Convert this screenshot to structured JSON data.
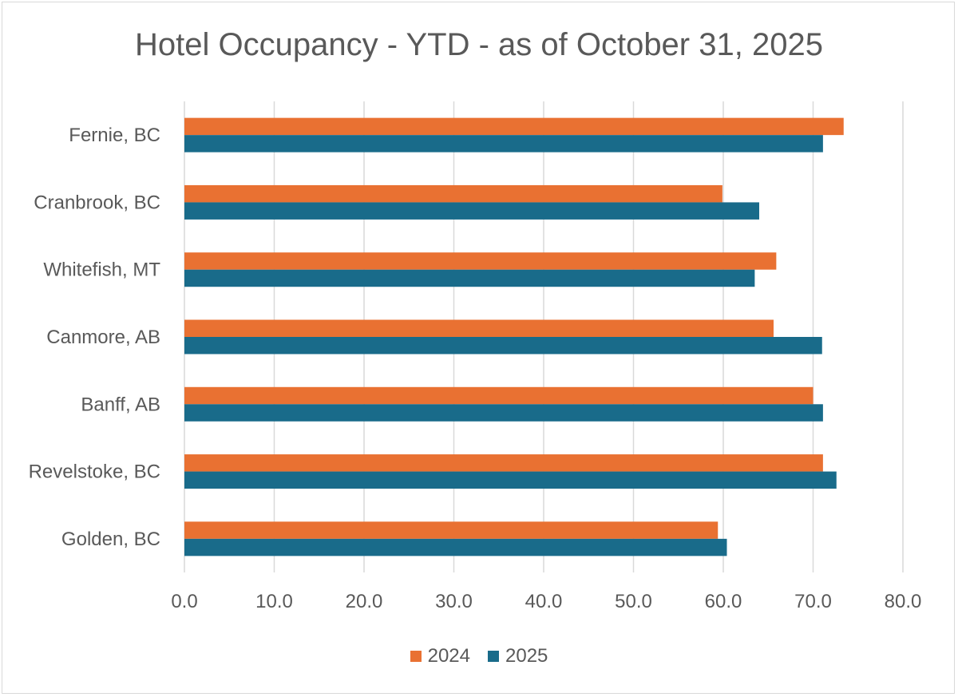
{
  "chart_data": {
    "type": "bar",
    "orientation": "horizontal",
    "title": "Hotel Occupancy - YTD - as of October 31, 2025",
    "categories": [
      "Fernie, BC",
      "Cranbrook, BC",
      "Whitefish, MT",
      "Canmore, AB",
      "Banff, AB",
      "Revelstoke, BC",
      "Golden, BC"
    ],
    "series": [
      {
        "name": "2024",
        "color": "#E97132",
        "values": [
          73.4,
          59.9,
          65.9,
          65.6,
          70.0,
          71.1,
          59.4
        ]
      },
      {
        "name": "2025",
        "color": "#196B8A",
        "values": [
          71.1,
          64.0,
          63.5,
          71.0,
          71.1,
          72.6,
          60.4
        ]
      }
    ],
    "xlim": [
      0,
      80
    ],
    "xticks": [
      "0.0",
      "10.0",
      "20.0",
      "30.0",
      "40.0",
      "50.0",
      "60.0",
      "70.0",
      "80.0"
    ],
    "xlabel": "",
    "ylabel": "",
    "grid": true,
    "legend": "bottom"
  }
}
